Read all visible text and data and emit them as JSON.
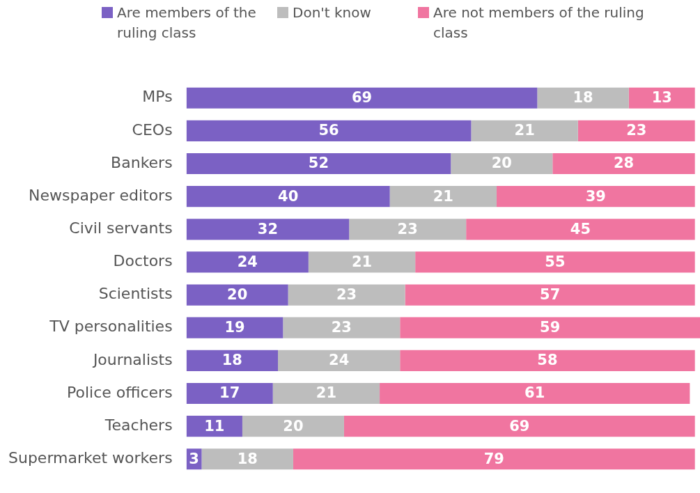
{
  "chart_data": {
    "type": "bar",
    "orientation": "horizontal",
    "stacked": true,
    "data_labels": true,
    "legend": "top",
    "tick_labels": "y",
    "xlim": [
      0,
      101
    ],
    "categories": [
      "MPs",
      "CEOs",
      "Bankers",
      "Newspaper editors",
      "Civil servants",
      "Doctors",
      "Scientists",
      "TV personalities",
      "Journalists",
      "Police officers",
      "Teachers",
      "Supermarket workers"
    ],
    "series": [
      {
        "name": "Are members of the ruling class",
        "color": "#7b61c4",
        "values": [
          69,
          56,
          52,
          40,
          32,
          24,
          20,
          19,
          18,
          17,
          11,
          3
        ]
      },
      {
        "name": "Don't know",
        "color": "#bdbdbd",
        "values": [
          18,
          21,
          20,
          21,
          23,
          21,
          23,
          23,
          24,
          21,
          20,
          18
        ]
      },
      {
        "name": "Are not members of the ruling class",
        "color": "#f075a0",
        "values": [
          13,
          23,
          28,
          39,
          45,
          55,
          57,
          59,
          58,
          61,
          69,
          79
        ]
      }
    ]
  }
}
